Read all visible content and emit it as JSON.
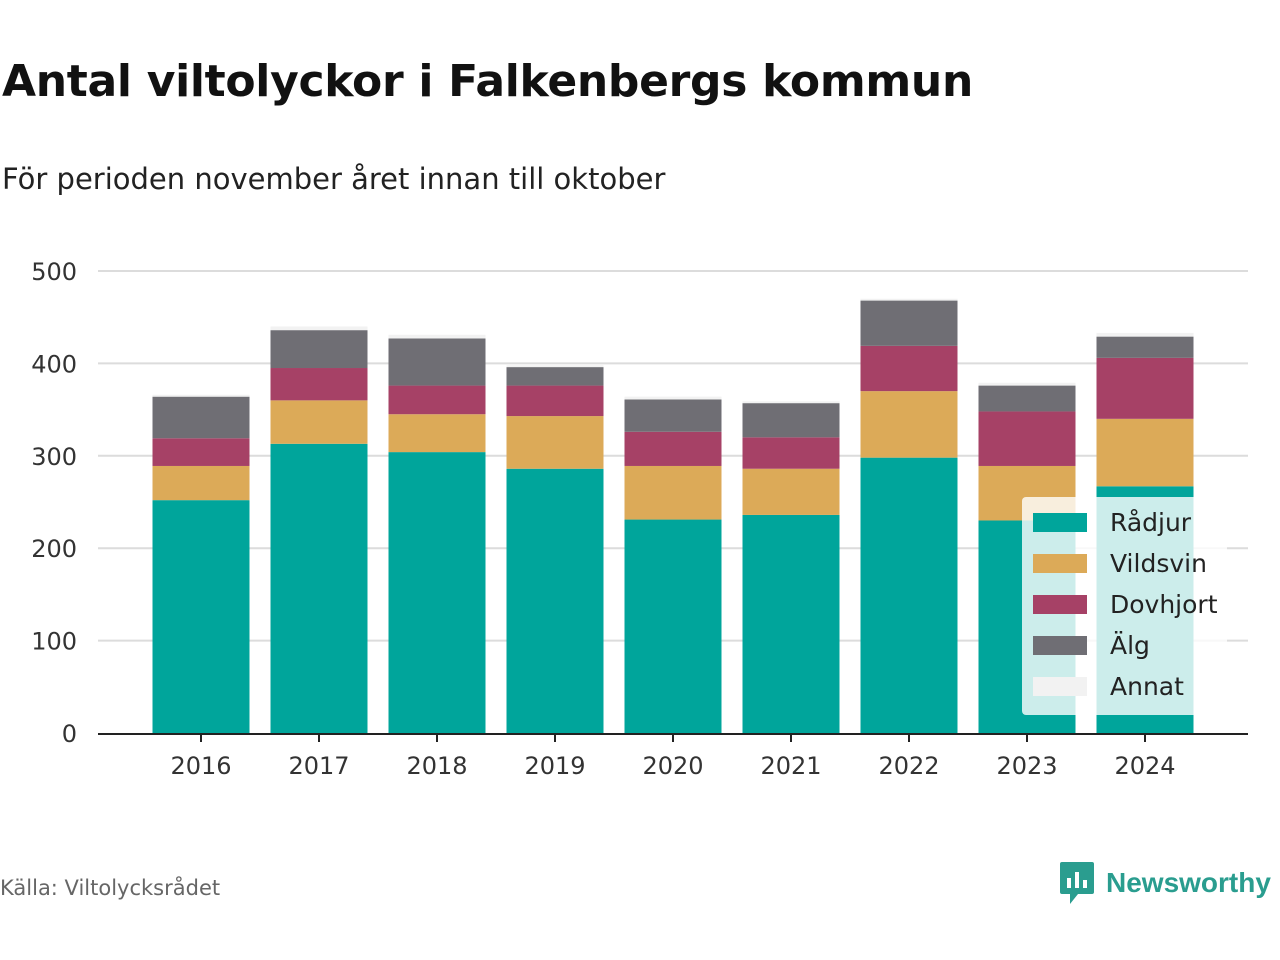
{
  "chart_data": {
    "type": "bar",
    "stacked": true,
    "title": "Antal viltolyckor i Falkenbergs kommun",
    "subtitle": "För perioden november året innan till oktober",
    "categories": [
      "2016",
      "2017",
      "2018",
      "2019",
      "2020",
      "2021",
      "2022",
      "2023",
      "2024"
    ],
    "yticks": [
      0,
      100,
      200,
      300,
      400,
      500
    ],
    "ylim": [
      0,
      500
    ],
    "grid": true,
    "legend_position": "bottom-right inside",
    "series": [
      {
        "name": "Rådjur",
        "color": "#00a59b",
        "values": [
          252,
          313,
          304,
          286,
          231,
          236,
          298,
          230,
          267
        ]
      },
      {
        "name": "Vildsvin",
        "color": "#dcaa58",
        "values": [
          37,
          47,
          41,
          57,
          58,
          50,
          72,
          59,
          73
        ]
      },
      {
        "name": "Dovhjort",
        "color": "#a64166",
        "values": [
          30,
          35,
          31,
          33,
          37,
          34,
          49,
          59,
          66
        ]
      },
      {
        "name": "Älg",
        "color": "#6f6e74",
        "values": [
          45,
          41,
          51,
          20,
          35,
          37,
          49,
          28,
          23
        ]
      },
      {
        "name": "Annat",
        "color": "#f2f2f2",
        "values": [
          2,
          4,
          4,
          2,
          3,
          2,
          2,
          3,
          4
        ]
      }
    ]
  },
  "source": "Källa: Viltolycksrådet",
  "brand": {
    "name": "Newsworthy",
    "icon": "chart-bubble-icon",
    "color": "#2a9d8f"
  }
}
